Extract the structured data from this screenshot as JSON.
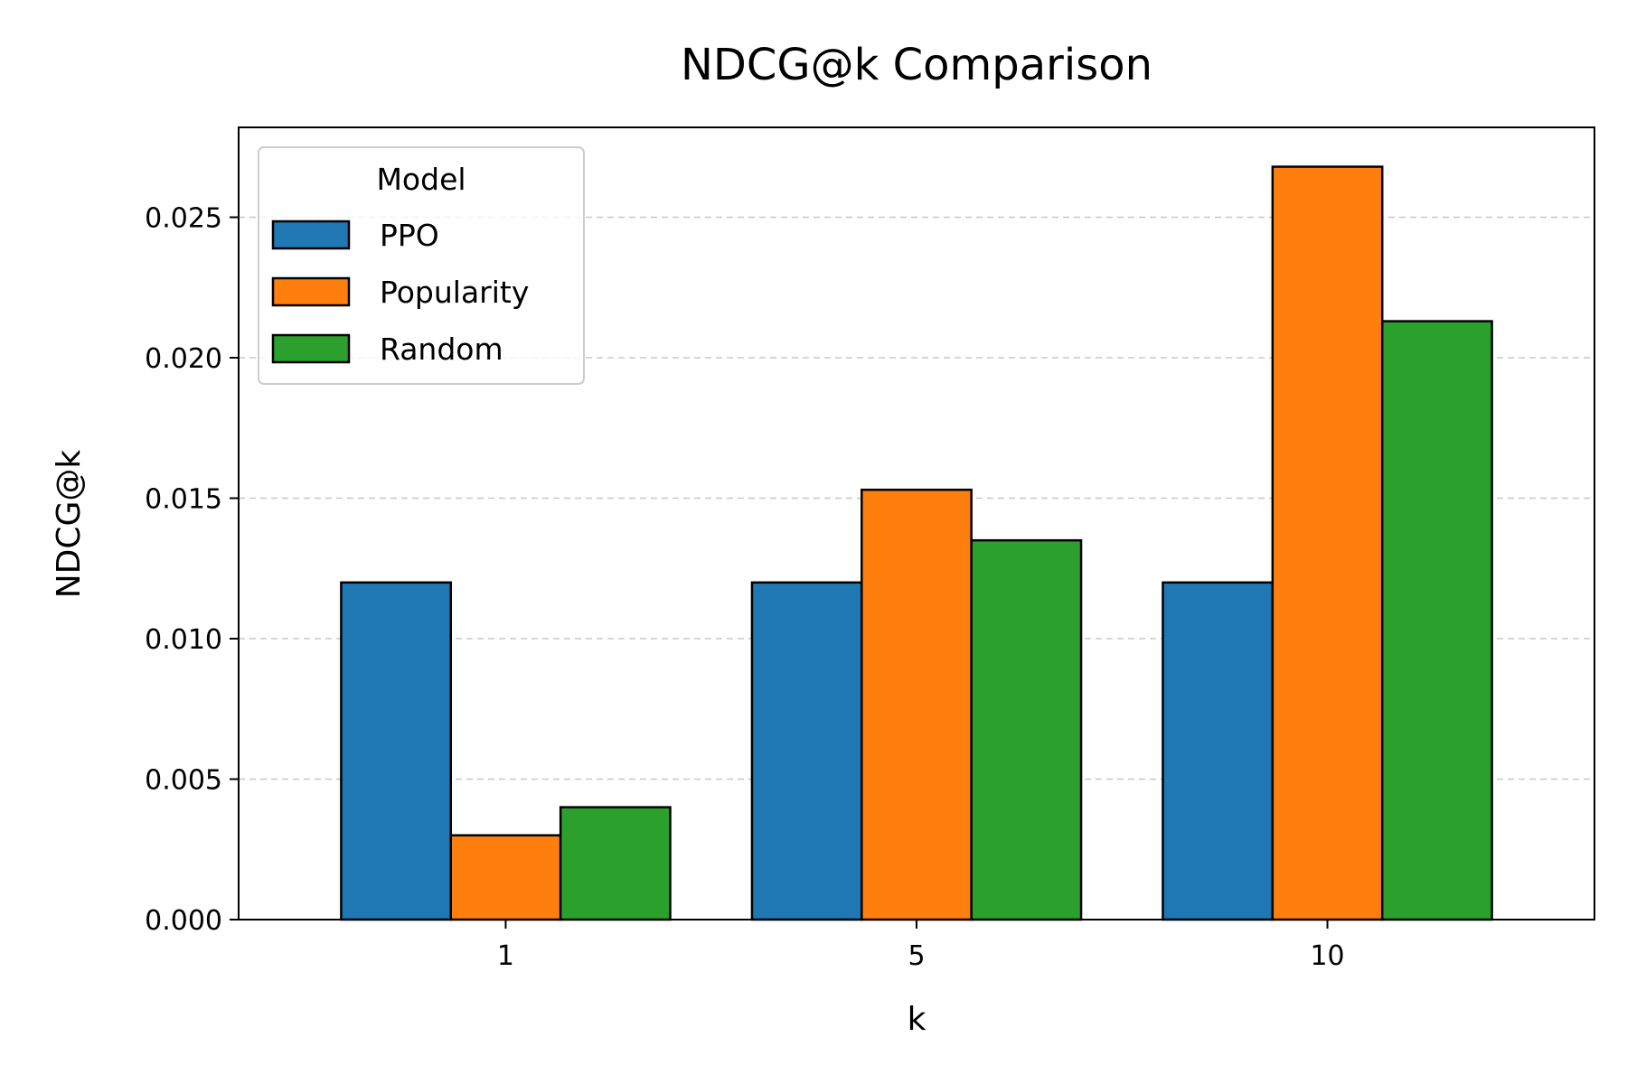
{
  "chart_data": {
    "type": "bar",
    "title": "NDCG@k Comparison",
    "xlabel": "k",
    "ylabel": "NDCG@k",
    "categories": [
      "1",
      "5",
      "10"
    ],
    "series": [
      {
        "name": "PPO",
        "values": [
          0.012,
          0.012,
          0.012
        ],
        "color": "#1f77b4"
      },
      {
        "name": "Popularity",
        "values": [
          0.003,
          0.0153,
          0.0268
        ],
        "color": "#ff7f0e"
      },
      {
        "name": "Random",
        "values": [
          0.004,
          0.0135,
          0.0213
        ],
        "color": "#2ca02c"
      }
    ],
    "ylim": [
      0,
      0.0282
    ],
    "yticks": [
      "0.000",
      "0.005",
      "0.010",
      "0.015",
      "0.020",
      "0.025"
    ],
    "grid": {
      "y": true,
      "style": "dashed"
    },
    "legend": {
      "title": "Model",
      "placement": "top-left"
    }
  }
}
